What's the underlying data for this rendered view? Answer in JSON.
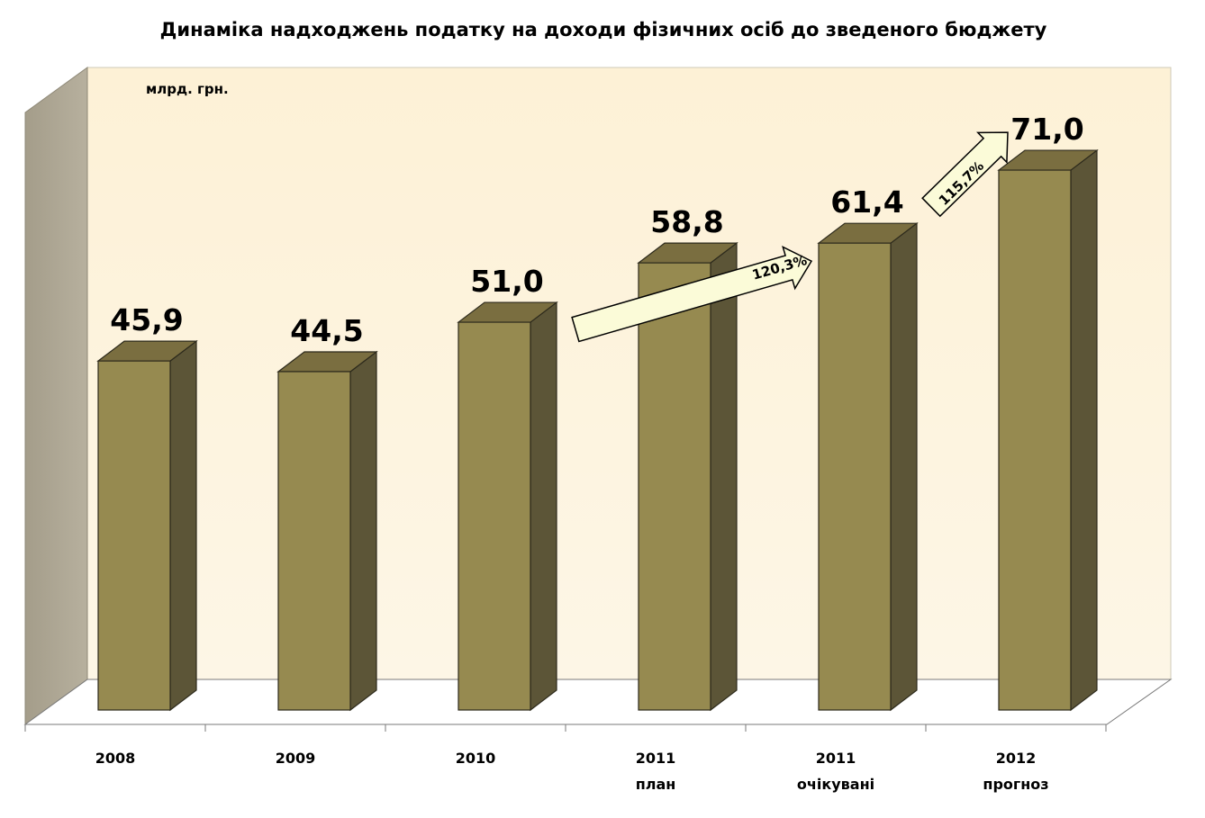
{
  "chart_data": {
    "type": "bar",
    "title": "Динаміка надходжень податку на доходи фізичних осіб до зведеного бюджету",
    "unit": "млрд. грн.",
    "categories": [
      {
        "year": "2008",
        "note": ""
      },
      {
        "year": "2009",
        "note": ""
      },
      {
        "year": "2010",
        "note": ""
      },
      {
        "year": "2011",
        "note": "план"
      },
      {
        "year": "2011",
        "note": "очікувані"
      },
      {
        "year": "2012",
        "note": "прогноз"
      }
    ],
    "values": [
      45.9,
      44.5,
      51.0,
      58.8,
      61.4,
      71.0
    ],
    "value_labels": [
      "45,9",
      "44,5",
      "51,0",
      "58,8",
      "61,4",
      "71,0"
    ],
    "ylim": [
      0,
      90
    ],
    "grid": false,
    "annotations": [
      {
        "text": "120,3%",
        "from_index": 2,
        "to_index": 4
      },
      {
        "text": "115,7%",
        "from_index": 4,
        "to_index": 5
      }
    ],
    "colors": {
      "bar_front": "#968a50",
      "bar_side": "#5c5537",
      "bar_top": "#7a6e40",
      "back_wall": "#fdf3dc",
      "side_wall": "#aaa290",
      "arrow_fill": "#fbfbd8"
    }
  }
}
